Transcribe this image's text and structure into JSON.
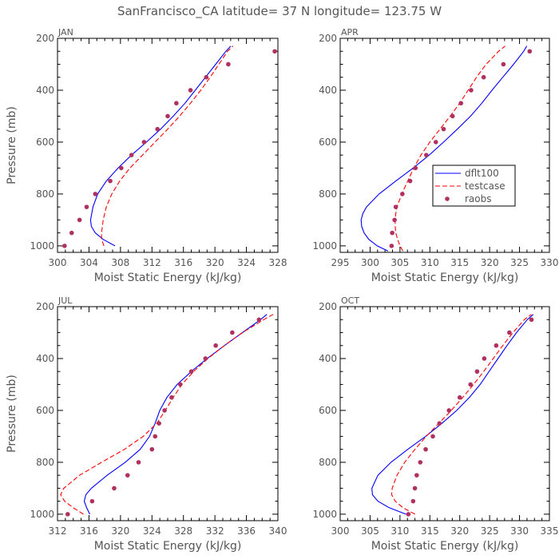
{
  "title": "SanFrancisco_CA  latitude= 37 N longitude= 123.75 W",
  "legend": {
    "series": [
      {
        "name": "dflt100",
        "color": "#0000ff",
        "style": "solid"
      },
      {
        "name": "testcase",
        "color": "#ff0000",
        "style": "dashed"
      },
      {
        "name": "raobs",
        "color": "#b03060",
        "style": "dots"
      }
    ]
  },
  "chart_data": [
    {
      "type": "line",
      "panel": "JAN",
      "title": "JAN",
      "xlabel": "Moist Static Energy (kJ/kg)",
      "ylabel": "Pressure (mb)",
      "xlim": [
        300,
        328
      ],
      "ylim": [
        1025,
        200
      ],
      "xticks": [
        300,
        304,
        308,
        312,
        316,
        320,
        324,
        328
      ],
      "yticks": [
        200,
        400,
        600,
        800,
        1000
      ],
      "y": [
        1000,
        975,
        950,
        925,
        900,
        850,
        800,
        750,
        700,
        650,
        600,
        550,
        500,
        450,
        400,
        350,
        300,
        250,
        230
      ],
      "series": [
        {
          "name": "dflt100",
          "x": [
            307.3,
            305.8,
            304.8,
            304.3,
            304.2,
            304.5,
            305.1,
            306.2,
            307.7,
            309.4,
            311.3,
            313.1,
            314.7,
            316.2,
            317.5,
            318.8,
            320.1,
            321.4,
            322.0
          ]
        },
        {
          "name": "testcase",
          "x": [
            305.9,
            305.6,
            305.6,
            305.7,
            305.8,
            306.2,
            306.9,
            307.9,
            309.2,
            310.8,
            312.4,
            314.0,
            315.5,
            316.9,
            318.2,
            319.4,
            320.5,
            321.6,
            322.3
          ]
        },
        {
          "name": "raobs",
          "y": [
            1000,
            950,
            900,
            850,
            800,
            750,
            700,
            650,
            600,
            550,
            500,
            450,
            400,
            350,
            300,
            250
          ],
          "x": [
            300.9,
            301.8,
            302.8,
            303.7,
            304.8,
            306.7,
            308.1,
            309.4,
            311.0,
            312.7,
            314.0,
            315.1,
            316.9,
            318.9,
            321.7,
            327.6
          ]
        }
      ]
    },
    {
      "type": "line",
      "panel": "APR",
      "title": "APR",
      "xlabel": "Moist Static Energy (kJ/kg)",
      "ylabel": "",
      "xlim": [
        295,
        330
      ],
      "ylim": [
        1025,
        200
      ],
      "xticks": [
        295,
        300,
        305,
        310,
        315,
        320,
        325,
        330
      ],
      "yticks": [
        200,
        400,
        600,
        800,
        1000
      ],
      "y": [
        1020,
        1000,
        975,
        950,
        925,
        900,
        875,
        850,
        800,
        750,
        700,
        650,
        600,
        550,
        500,
        450,
        400,
        350,
        300,
        250,
        230
      ],
      "series": [
        {
          "name": "dflt100",
          "x": [
            303.0,
            301.2,
            299.8,
            299.0,
            298.6,
            298.5,
            298.8,
            299.4,
            301.5,
            304.3,
            307.2,
            309.9,
            312.3,
            314.6,
            316.8,
            318.7,
            320.4,
            322.2,
            324.0,
            325.7,
            326.2
          ]
        },
        {
          "name": "testcase",
          "x": [
            305.5,
            305.0,
            304.6,
            304.3,
            304.2,
            304.2,
            304.3,
            304.5,
            305.3,
            306.3,
            307.3,
            308.5,
            310.0,
            311.7,
            313.4,
            315.0,
            316.4,
            317.8,
            319.4,
            321.5,
            322.6
          ]
        },
        {
          "name": "raobs",
          "y": [
            1000,
            950,
            900,
            850,
            800,
            750,
            700,
            650,
            600,
            550,
            500,
            450,
            400,
            350,
            300,
            250
          ],
          "x": [
            303.6,
            303.7,
            304.1,
            304.3,
            305.4,
            306.7,
            307.6,
            309.4,
            311.0,
            312.3,
            313.8,
            315.2,
            316.9,
            319.0,
            322.3,
            326.7
          ]
        }
      ]
    },
    {
      "type": "line",
      "panel": "JUL",
      "title": "JUL",
      "xlabel": "Moist Static Energy (kJ/kg)",
      "ylabel": "Pressure (mb)",
      "xlim": [
        312,
        340
      ],
      "ylim": [
        1025,
        200
      ],
      "xticks": [
        312,
        316,
        320,
        324,
        328,
        332,
        336,
        340
      ],
      "yticks": [
        200,
        400,
        600,
        800,
        1000
      ],
      "y": [
        1000,
        975,
        950,
        925,
        900,
        850,
        800,
        750,
        700,
        650,
        600,
        550,
        500,
        450,
        400,
        350,
        300,
        250,
        230
      ],
      "series": [
        {
          "name": "dflt100",
          "x": [
            316.1,
            315.7,
            315.4,
            315.6,
            316.3,
            318.3,
            320.6,
            322.5,
            323.7,
            324.4,
            325.0,
            325.9,
            327.2,
            329.0,
            331.0,
            333.2,
            335.5,
            337.8,
            338.6
          ]
        },
        {
          "name": "testcase",
          "x": [
            315.3,
            314.0,
            312.9,
            312.4,
            312.8,
            314.8,
            317.6,
            320.5,
            322.9,
            324.6,
            325.7,
            326.7,
            327.8,
            329.3,
            331.1,
            333.2,
            335.5,
            338.2,
            339.4
          ]
        },
        {
          "name": "raobs",
          "y": [
            1000,
            950,
            900,
            850,
            800,
            750,
            700,
            650,
            600,
            550,
            500,
            450,
            400,
            350,
            300,
            250
          ],
          "x": [
            313.3,
            316.4,
            319.2,
            320.9,
            322.3,
            324.0,
            324.4,
            324.9,
            325.6,
            326.5,
            327.6,
            329.0,
            330.8,
            332.1,
            334.2,
            337.6
          ]
        }
      ]
    },
    {
      "type": "line",
      "panel": "OCT",
      "title": "OCT",
      "xlabel": "Moist Static Energy (kJ/kg)",
      "ylabel": "",
      "xlim": [
        300,
        335
      ],
      "ylim": [
        1025,
        200
      ],
      "xticks": [
        300,
        305,
        310,
        315,
        320,
        325,
        330,
        335
      ],
      "yticks": [
        200,
        400,
        600,
        800,
        1000
      ],
      "y": [
        1000,
        975,
        950,
        925,
        900,
        850,
        800,
        750,
        700,
        650,
        600,
        550,
        500,
        450,
        400,
        350,
        300,
        250,
        230
      ],
      "series": [
        {
          "name": "dflt100",
          "x": [
            311.0,
            308.2,
            306.3,
            305.4,
            305.3,
            306.3,
            308.5,
            311.3,
            314.3,
            317.0,
            319.5,
            321.6,
            323.4,
            324.9,
            326.4,
            327.9,
            329.5,
            331.3,
            332.3
          ]
        },
        {
          "name": "testcase",
          "x": [
            312.5,
            310.5,
            309.2,
            308.6,
            308.7,
            309.5,
            310.8,
            312.5,
            314.4,
            316.5,
            318.6,
            320.5,
            322.3,
            324.0,
            325.6,
            327.2,
            328.9,
            330.8,
            332.0
          ]
        },
        {
          "name": "raobs",
          "y": [
            1000,
            950,
            900,
            850,
            800,
            750,
            700,
            650,
            600,
            550,
            500,
            450,
            400,
            350,
            300,
            250
          ],
          "x": [
            311.4,
            312.2,
            312.5,
            312.8,
            313.4,
            314.3,
            315.5,
            316.6,
            318.2,
            320.0,
            321.8,
            322.9,
            324.1,
            326.1,
            328.3,
            332.0
          ]
        }
      ]
    }
  ]
}
